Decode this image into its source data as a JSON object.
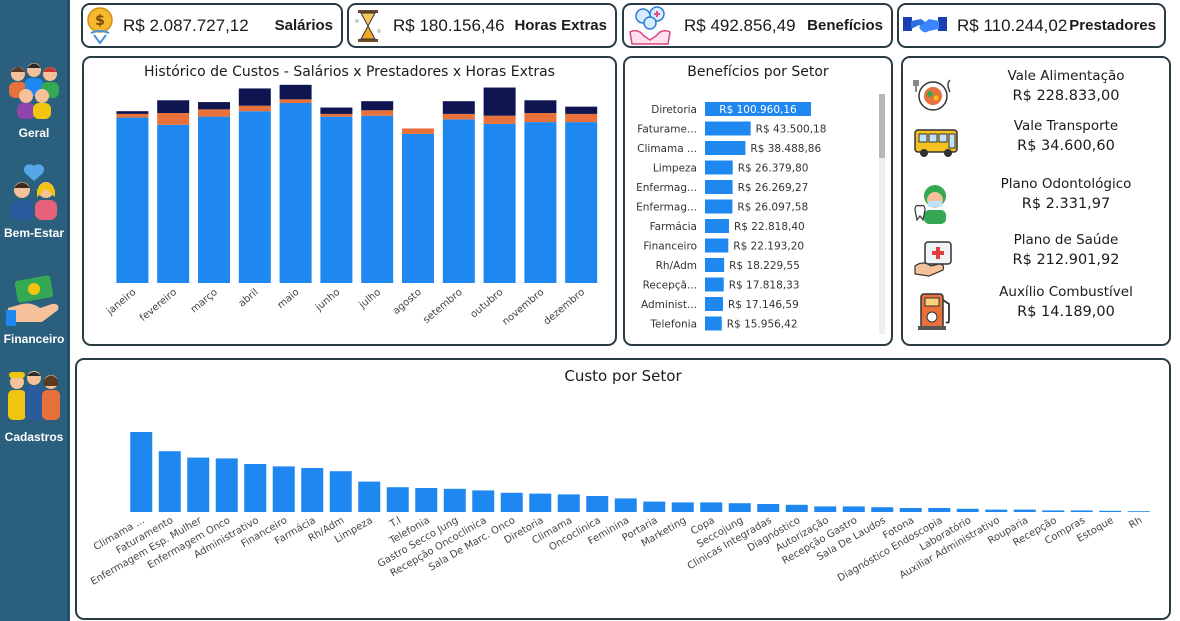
{
  "nav": [
    {
      "label": "Geral",
      "icon": "people-group-icon"
    },
    {
      "label": "Bem-Estar",
      "icon": "couple-health-icon"
    },
    {
      "label": "Financeiro",
      "icon": "money-hand-icon"
    },
    {
      "label": "Cadastros",
      "icon": "workers-icon"
    }
  ],
  "kpis": {
    "salarios": {
      "value": "R$ 2.087.727,12",
      "label": "Salários"
    },
    "horas_extras": {
      "value": "R$ 180.156,46",
      "label": "Horas Extras"
    },
    "beneficios": {
      "value": "R$ 492.856,49",
      "label": "Benefícios"
    },
    "prestadores": {
      "value": "R$ 110.244,02",
      "label": "Prestadores"
    }
  },
  "panels": {
    "historico_title": "Histórico de Custos - Salários x Prestadores x Horas Extras",
    "beneficios_setor_title": "Benefícios por Setor",
    "custo_setor_title": "Custo por Setor"
  },
  "benefits": [
    {
      "name": "Vale Alimentação",
      "value": "R$ 228.833,00",
      "icon": "meal-icon"
    },
    {
      "name": "Vale Transporte",
      "value": "R$ 34.600,60",
      "icon": "bus-icon"
    },
    {
      "name": "Plano Odontológico",
      "value": "R$ 2.331,97",
      "icon": "dentist-icon"
    },
    {
      "name": "Plano de Saúde",
      "value": "R$ 212.901,92",
      "icon": "health-kit-icon"
    },
    {
      "name": "Auxílio Combustível",
      "value": "R$ 14.189,00",
      "icon": "fuel-pump-icon"
    }
  ],
  "colors": {
    "sidebar": "#2a5f7d",
    "salarios": "#1e88f0",
    "horas_extras": "#e8703a",
    "prestadores": "#0e1550",
    "bar": "#1e88f0",
    "border": "#2b3b44"
  },
  "chart_data": [
    {
      "type": "bar",
      "title": "Histórico de Custos - Salários x Prestadores x Horas Extras",
      "stacked": true,
      "categories": [
        "janeiro",
        "fevereiro",
        "março",
        "abril",
        "maio",
        "junho",
        "julho",
        "agosto",
        "setembro",
        "outubro",
        "novembro",
        "dezembro"
      ],
      "series": [
        {
          "name": "Salários",
          "values": [
            182,
            174,
            183,
            189,
            198,
            183,
            184,
            164,
            180,
            175,
            177,
            177
          ]
        },
        {
          "name": "Horas Extras",
          "values": [
            4,
            13,
            8,
            6,
            4,
            3,
            6,
            6,
            6,
            9,
            10,
            9
          ]
        },
        {
          "name": "Prestadores",
          "values": [
            3,
            14,
            8,
            19,
            16,
            7,
            10,
            0,
            14,
            31,
            14,
            8
          ]
        }
      ],
      "ylim": [
        0,
        220
      ],
      "grid": false,
      "legend": "none"
    },
    {
      "type": "bar",
      "orientation": "horizontal",
      "title": "Benefícios por Setor",
      "categories": [
        "Diretoria",
        "Faturame...",
        "Climama ...",
        "Limpeza",
        "Enfermag...",
        "Enfermag...",
        "Farmácia",
        "Financeiro",
        "Rh/Adm",
        "Recepçã...",
        "Administ...",
        "Telefonia"
      ],
      "values": [
        100960.16,
        43500.18,
        38488.86,
        26379.8,
        26269.27,
        26097.58,
        22818.4,
        22193.2,
        18229.55,
        17818.33,
        17146.59,
        15956.42
      ],
      "labels": [
        "R$ 100.960,16",
        "R$ 43.500,18",
        "R$ 38.488,86",
        "R$ 26.379,80",
        "R$ 26.269,27",
        "R$ 26.097,58",
        "R$ 22.818,40",
        "R$ 22.193,20",
        "R$ 18.229,55",
        "R$ 17.818,33",
        "R$ 17.146,59",
        "R$ 15.956,42"
      ],
      "highlighted": "Diretoria"
    },
    {
      "type": "bar",
      "title": "Custo por Setor",
      "categories": [
        "Climama ...",
        "Faturamento",
        "Enfermagem Esp. Mulher",
        "Enfermagem Onco",
        "Administrativo",
        "Financeiro",
        "Farmácia",
        "Rh/Adm",
        "Limpeza",
        "T.I",
        "Telefonia",
        "Gastro Secco Jung",
        "Recepção Oncoclinica",
        "Sala De Marc. Onco",
        "Diretoria",
        "Climama",
        "Oncoclinica",
        "Feminina",
        "Portaria",
        "Marketing",
        "Copa",
        "Seccojung",
        "Clinicas Integradas",
        "Diagnóstico",
        "Autorização",
        "Recepção Gastro",
        "Sala De Laudos",
        "Fotona",
        "Diagnóstico Endoscopia",
        "Laboratório",
        "Auxiliar Administrativo",
        "Rouparia",
        "Recepção",
        "Compras",
        "Estoque",
        "Rh"
      ],
      "values": [
        100,
        76,
        68,
        67,
        60,
        57,
        55,
        51,
        38,
        31,
        30,
        29,
        27,
        24,
        23,
        22,
        20,
        17,
        13,
        12,
        12,
        11,
        10,
        9,
        7,
        7,
        6,
        5,
        5,
        4,
        3,
        3,
        2,
        2,
        1.5,
        1
      ],
      "ylim": [
        0,
        105
      ],
      "legend": "none"
    }
  ]
}
